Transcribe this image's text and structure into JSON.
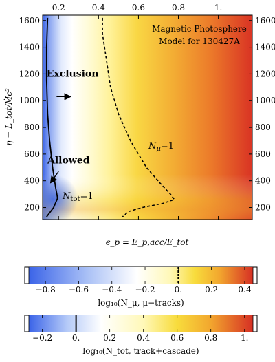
{
  "chart_data": {
    "type": "heatmap",
    "title": "Magnetic Photosphere Model for 130427A",
    "title_lines": [
      "Magnetic Photosphere",
      "Model for 130427A"
    ],
    "xlabel": "ϵ_p = E_p,acc/E_tot",
    "ylabel": "η = L_tot/Ṁc²",
    "xlim": [
      0.12,
      1.17
    ],
    "ylim": [
      110,
      1640
    ],
    "x_ticks": [
      {
        "value": 0.2,
        "label": "0.2"
      },
      {
        "value": 0.4,
        "label": "0.4"
      },
      {
        "value": 0.6,
        "label": "0.6"
      },
      {
        "value": 0.8,
        "label": "0.8"
      },
      {
        "value": 1.0,
        "label": "1."
      }
    ],
    "y_ticks": [
      {
        "value": 200,
        "label": "200"
      },
      {
        "value": 400,
        "label": "400"
      },
      {
        "value": 600,
        "label": "600"
      },
      {
        "value": 800,
        "label": "800"
      },
      {
        "value": 1000,
        "label": "1000"
      },
      {
        "value": 1200,
        "label": "1200"
      },
      {
        "value": 1400,
        "label": "1400"
      },
      {
        "value": 1600,
        "label": "1600"
      }
    ],
    "grid": false,
    "colormap": [
      "#3b64e8",
      "#ffffff",
      "#fff6a8",
      "#f9d13a",
      "#f0932b",
      "#d62f24"
    ],
    "contours": [
      {
        "name": "N_tot=1",
        "style": "solid",
        "points": [
          [
            0.145,
            1620
          ],
          [
            0.14,
            1400
          ],
          [
            0.14,
            1150
          ],
          [
            0.145,
            900
          ],
          [
            0.155,
            700
          ],
          [
            0.17,
            500
          ],
          [
            0.185,
            350
          ],
          [
            0.195,
            270
          ],
          [
            0.175,
            200
          ],
          [
            0.14,
            130
          ]
        ]
      },
      {
        "name": "N_μ=1",
        "style": "dashed",
        "points": [
          [
            0.42,
            1620
          ],
          [
            0.42,
            1500
          ],
          [
            0.44,
            1300
          ],
          [
            0.46,
            1100
          ],
          [
            0.5,
            900
          ],
          [
            0.56,
            700
          ],
          [
            0.64,
            500
          ],
          [
            0.71,
            380
          ],
          [
            0.76,
            300
          ],
          [
            0.78,
            260
          ],
          [
            0.72,
            230
          ],
          [
            0.62,
            200
          ],
          [
            0.55,
            170
          ],
          [
            0.52,
            130
          ]
        ]
      }
    ],
    "annotations": [
      {
        "text": "Exclusion",
        "x": 0.27,
        "y": 1180
      },
      {
        "text": "Allowed",
        "x": 0.25,
        "y": 530
      },
      {
        "text": "N_μ=1",
        "x": 0.65,
        "y": 640
      },
      {
        "text": "N_tot=1",
        "x": 0.22,
        "y": 265
      }
    ],
    "colorbars": [
      {
        "label": "log₁₀(N_μ, μ−tracks)",
        "range": [
          -0.9,
          0.45
        ],
        "ticks": [
          {
            "value": -0.8,
            "label": "−0.8"
          },
          {
            "value": -0.6,
            "label": "−0.6"
          },
          {
            "value": -0.4,
            "label": "−0.4"
          },
          {
            "value": -0.2,
            "label": "−0.2"
          },
          {
            "value": 0.0,
            "label": "0."
          },
          {
            "value": 0.2,
            "label": "0.2"
          },
          {
            "value": 0.4,
            "label": "0.4"
          }
        ],
        "marker": {
          "value": 0.0,
          "style": "dashed"
        },
        "stops": [
          [
            -0.9,
            "#3b64e8"
          ],
          [
            -0.55,
            "#a9c0f6"
          ],
          [
            -0.25,
            "#ffffff"
          ],
          [
            -0.05,
            "#fff8b8"
          ],
          [
            0.1,
            "#f8dc3c"
          ],
          [
            0.25,
            "#f2a62e"
          ],
          [
            0.45,
            "#d62f24"
          ]
        ]
      },
      {
        "label": "log₁₀(N_tot, track+cascade)",
        "range": [
          -0.28,
          1.05
        ],
        "ticks": [
          {
            "value": -0.2,
            "label": "−0.2"
          },
          {
            "value": 0.0,
            "label": "0."
          },
          {
            "value": 0.2,
            "label": "0.2"
          },
          {
            "value": 0.4,
            "label": "0.4"
          },
          {
            "value": 0.6,
            "label": "0.6"
          },
          {
            "value": 0.8,
            "label": "0.8"
          },
          {
            "value": 1.0,
            "label": "1."
          }
        ],
        "marker": {
          "value": 0.0,
          "style": "solid"
        },
        "stops": [
          [
            -0.28,
            "#3b64e8"
          ],
          [
            -0.05,
            "#b6cbf8"
          ],
          [
            0.15,
            "#ffffff"
          ],
          [
            0.4,
            "#fff8b8"
          ],
          [
            0.6,
            "#f8dc3c"
          ],
          [
            0.8,
            "#f2a62e"
          ],
          [
            1.05,
            "#d62f24"
          ]
        ]
      }
    ]
  }
}
